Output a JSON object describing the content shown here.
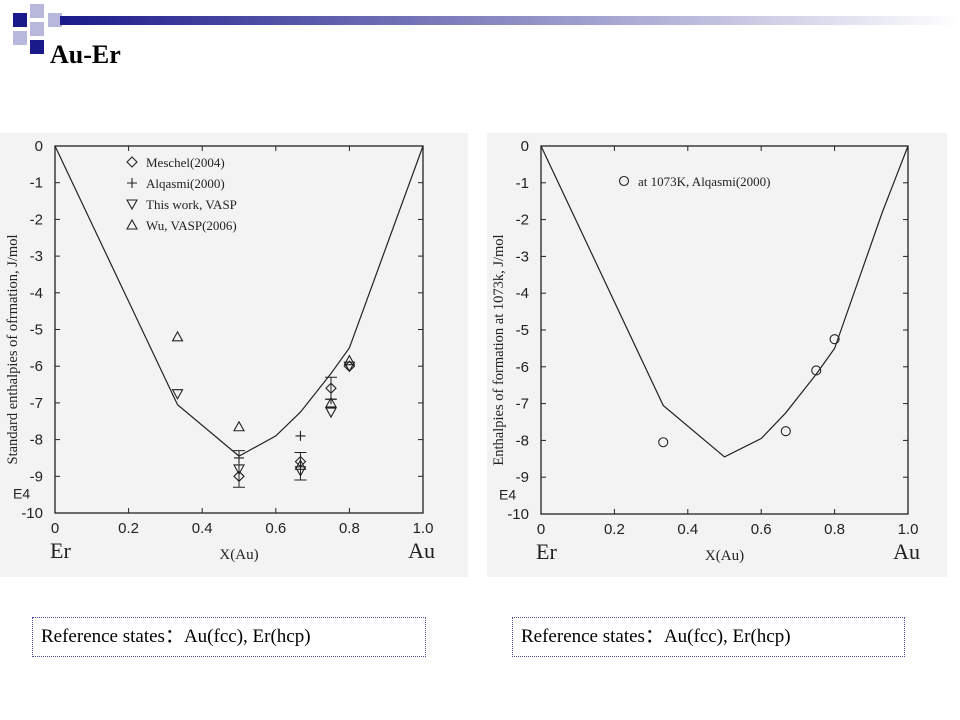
{
  "slide": {
    "title": "Au-Er",
    "colors": {
      "accent_dark": "#1a1a8a",
      "accent_light": "#b8b8dc",
      "panel_bg": "#f3f3f3"
    }
  },
  "references": [
    {
      "label": "Reference states：Au(fcc), Er(hcp)"
    },
    {
      "label": "Reference states：Au(fcc), Er(hcp)"
    }
  ],
  "chart_data": [
    {
      "type": "scatter",
      "title": "",
      "ylabel": "Standard enthalpies of ofrmation, J/mol",
      "yunit": "E4",
      "xlabel": "X(Au)",
      "x_end_left": "Er",
      "x_end_right": "Au",
      "xlim": [
        0,
        1.0
      ],
      "ylim": [
        -10,
        0
      ],
      "xticks": [
        "0",
        "0.2",
        "0.4",
        "0.6",
        "0.8",
        "1.0"
      ],
      "yticks": [
        "0",
        "-1",
        "-2",
        "-3",
        "-4",
        "-5",
        "-6",
        "-7",
        "-8",
        "-9",
        "-10"
      ],
      "grid": false,
      "legend_position": "top-center",
      "line": {
        "x": [
          0,
          0.333,
          0.5,
          0.6,
          0.667,
          0.75,
          0.8,
          1.0
        ],
        "y": [
          0,
          -7.05,
          -8.45,
          -7.9,
          -7.25,
          -6.2,
          -5.5,
          0
        ]
      },
      "series": [
        {
          "name": "Meschel(2004)",
          "marker": "diamond",
          "x": [
            0.5,
            0.667,
            0.75,
            0.8
          ],
          "y": [
            -9.0,
            -8.6,
            -6.6,
            -6.0
          ]
        },
        {
          "name": "Alqasmi(2000)",
          "marker": "plus",
          "x": [
            0.5,
            0.667,
            0.75
          ],
          "y": [
            -8.5,
            -7.9,
            -6.9
          ]
        },
        {
          "name": "This work, VASP",
          "marker": "triangle-down",
          "x": [
            0.333,
            0.5,
            0.667,
            0.75,
            0.8
          ],
          "y": [
            -6.75,
            -8.8,
            -8.85,
            -7.25,
            -6.0
          ]
        },
        {
          "name": "Wu, VASP(2006)",
          "marker": "triangle-up",
          "x": [
            0.333,
            0.5,
            0.667,
            0.75,
            0.8
          ],
          "y": [
            -5.2,
            -7.65,
            -8.7,
            -7.0,
            -5.85
          ]
        }
      ],
      "error_bars": [
        {
          "x": 0.5,
          "y": -8.8,
          "low": -9.3,
          "high": -8.3
        },
        {
          "x": 0.667,
          "y": -8.7,
          "low": -9.1,
          "high": -8.35
        },
        {
          "x": 0.75,
          "y": -6.6,
          "low": -6.9,
          "high": -6.3
        }
      ]
    },
    {
      "type": "scatter",
      "title": "",
      "ylabel": "Enthalpies of formation at 1073k, J/mol",
      "yunit": "E4",
      "xlabel": "X(Au)",
      "x_end_left": "Er",
      "x_end_right": "Au",
      "xlim": [
        0,
        1.0
      ],
      "ylim": [
        -10,
        0
      ],
      "xticks": [
        "0",
        "0.2",
        "0.4",
        "0.6",
        "0.8",
        "1.0"
      ],
      "yticks": [
        "0",
        "-1",
        "-2",
        "-3",
        "-4",
        "-5",
        "-6",
        "-7",
        "-8",
        "-9",
        "-10"
      ],
      "grid": false,
      "legend_position": "top-center",
      "line": {
        "x": [
          0,
          0.333,
          0.5,
          0.6,
          0.667,
          0.75,
          0.8,
          0.93,
          1.0
        ],
        "y": [
          0,
          -7.05,
          -8.45,
          -7.95,
          -7.25,
          -6.2,
          -5.5,
          -1.8,
          0
        ]
      },
      "series": [
        {
          "name": "at 1073K, Alqasmi(2000)",
          "marker": "circle",
          "x": [
            0.333,
            0.667,
            0.75,
            0.8
          ],
          "y": [
            -8.05,
            -7.75,
            -6.1,
            -5.25
          ]
        }
      ],
      "error_bars": []
    }
  ]
}
